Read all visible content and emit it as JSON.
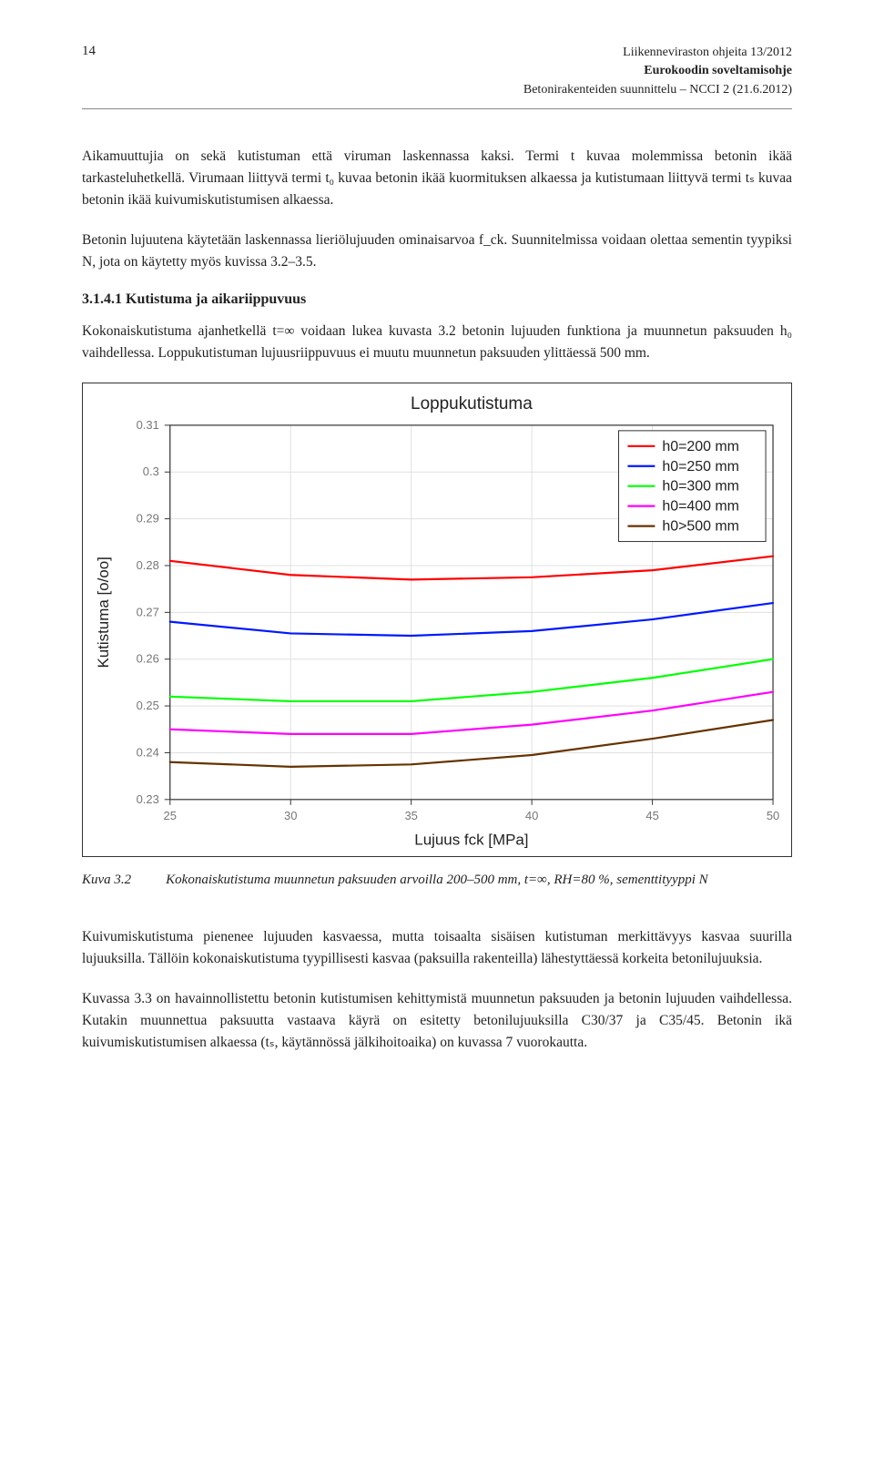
{
  "header": {
    "page_number": "14",
    "lines": [
      "Liikenneviraston ohjeita 13/2012",
      "Eurokoodin soveltamisohje",
      "Betonirakenteiden suunnittelu – NCCI 2 (21.6.2012)"
    ]
  },
  "paragraphs": {
    "p1": "Aikamuuttujia on sekä kutistuman että viruman laskennassa kaksi. Termi t kuvaa molemmissa betonin ikää tarkasteluhetkellä. Virumaan liittyvä termi t₀ kuvaa betonin ikää kuormituksen alkaessa ja kutistumaan liittyvä termi tₛ kuvaa betonin ikää kuivumiskutistumisen alkaessa.",
    "p2": "Betonin lujuutena käytetään laskennassa lieriölujuuden ominaisarvoa f_ck. Suunnitelmissa voidaan olettaa sementin tyypiksi N, jota on käytetty myös kuvissa 3.2–3.5.",
    "h3": "3.1.4.1   Kutistuma ja aikariippuvuus",
    "p3": "Kokonaiskutistuma ajanhetkellä t=∞ voidaan lukea kuvasta 3.2 betonin lujuuden funktiona ja muunnetun paksuuden h₀ vaihdellessa. Loppukutistuman lujuusriippuvuus ei muutu muunnetun paksuuden ylittäessä 500 mm.",
    "p4": "Kuivumiskutistuma pienenee lujuuden kasvaessa, mutta toisaalta sisäisen kutistuman merkittävyys kasvaa suurilla lujuuksilla. Tällöin kokonaiskutistuma tyypillisesti kasvaa (paksuilla rakenteilla) lähestyttäessä korkeita betonilujuuksia.",
    "p5": "Kuvassa 3.3 on havainnollistettu betonin kutistumisen kehittymistä muunnetun paksuuden ja betonin lujuuden vaihdellessa. Kutakin muunnettua paksuutta vastaava käyrä on esitetty betonilujuuksilla C30/37 ja C35/45. Betonin ikä kuivumiskutistumisen alkaessa (tₛ, käytännössä jälkihoitoaika) on kuvassa 7 vuorokautta."
  },
  "caption": {
    "label": "Kuva 3.2",
    "text": "Kokonaiskutistuma muunnetun paksuuden arvoilla 200–500 mm, t=∞, RH=80 %, sementtityyppi N"
  },
  "chart": {
    "type": "line",
    "title": "Loppukutistuma",
    "title_fontsize": 19,
    "xlabel": "Lujuus fck [MPa]",
    "ylabel": "Kutistuma [o/oo]",
    "label_fontsize": 17,
    "tick_fontsize": 13,
    "legend_fontsize": 16,
    "xlim": [
      25,
      50
    ],
    "ylim": [
      0.23,
      0.31
    ],
    "xticks": [
      25,
      30,
      35,
      40,
      45,
      50
    ],
    "yticks": [
      0.23,
      0.24,
      0.25,
      0.26,
      0.27,
      0.28,
      0.29,
      0.3,
      0.31
    ],
    "grid_color": "#e0e0e0",
    "axis_color": "#333333",
    "background_color": "#ffffff",
    "tick_text_color": "#777777",
    "line_width": 2.2,
    "legend": {
      "position": "top-right",
      "items": [
        {
          "label": "h0=200 mm",
          "color": "#ff0000"
        },
        {
          "label": "h0=250 mm",
          "color": "#0019ff"
        },
        {
          "label": "h0=300 mm",
          "color": "#00ff00"
        },
        {
          "label": "h0=400 mm",
          "color": "#ff00ff"
        },
        {
          "label": "h0>500 mm",
          "color": "#663300"
        }
      ]
    },
    "series": [
      {
        "name": "h0=200 mm",
        "color": "#ff0000",
        "x": [
          25,
          30,
          35,
          40,
          45,
          50
        ],
        "y": [
          0.281,
          0.278,
          0.277,
          0.2775,
          0.279,
          0.282
        ]
      },
      {
        "name": "h0=250 mm",
        "color": "#0019ff",
        "x": [
          25,
          30,
          35,
          40,
          45,
          50
        ],
        "y": [
          0.268,
          0.2655,
          0.265,
          0.266,
          0.2685,
          0.272
        ]
      },
      {
        "name": "h0=300 mm",
        "color": "#00ff00",
        "x": [
          25,
          30,
          35,
          40,
          45,
          50
        ],
        "y": [
          0.252,
          0.251,
          0.251,
          0.253,
          0.256,
          0.26
        ]
      },
      {
        "name": "h0=400 mm",
        "color": "#ff00ff",
        "x": [
          25,
          30,
          35,
          40,
          45,
          50
        ],
        "y": [
          0.245,
          0.244,
          0.244,
          0.246,
          0.249,
          0.253
        ]
      },
      {
        "name": "h0>500 mm",
        "color": "#663300",
        "x": [
          25,
          30,
          35,
          40,
          45,
          50
        ],
        "y": [
          0.238,
          0.237,
          0.2375,
          0.2395,
          0.243,
          0.247
        ]
      }
    ]
  }
}
